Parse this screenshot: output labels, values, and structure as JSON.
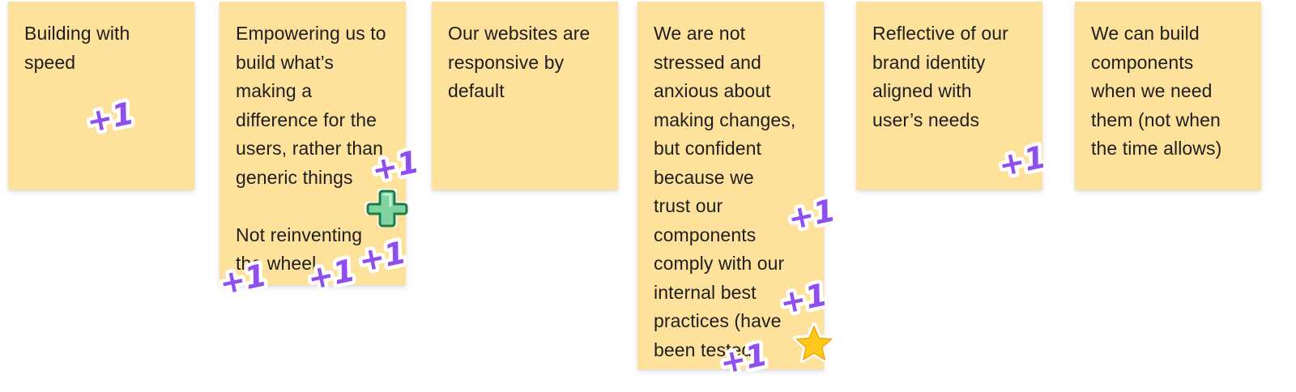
{
  "board": {
    "notes": [
      {
        "paragraphs": [
          "Building with\nspeed"
        ]
      },
      {
        "paragraphs": [
          "Empowering us to\nbuild what’s\nmaking a\ndifference for the\nusers, rather than\ngeneric things",
          "Not reinventing\nthe wheel"
        ]
      },
      {
        "paragraphs": [
          "Our websites are\nresponsive by\ndefault"
        ]
      },
      {
        "paragraphs": [
          "We are not\nstressed and\nanxious about\nmaking changes,\nbut confident\nbecause we\ntrust our\ncomponents\ncomply with our\ninternal best\npractices (have\nbeen tested)"
        ]
      },
      {
        "paragraphs": [
          "Reflective of our\nbrand identity\naligned with\nuser’s needs"
        ]
      },
      {
        "paragraphs": [
          "We can build\ncomponents\nwhen we need\nthem (not when\nthe time allows)"
        ]
      }
    ],
    "vote_sticker_label": "+1",
    "colors": {
      "note_fill": "#fee19b",
      "vote_sticker": "#8f4ef0",
      "cross_sticker": "#7fd3a0",
      "star_sticker": "#ffc91c"
    }
  }
}
